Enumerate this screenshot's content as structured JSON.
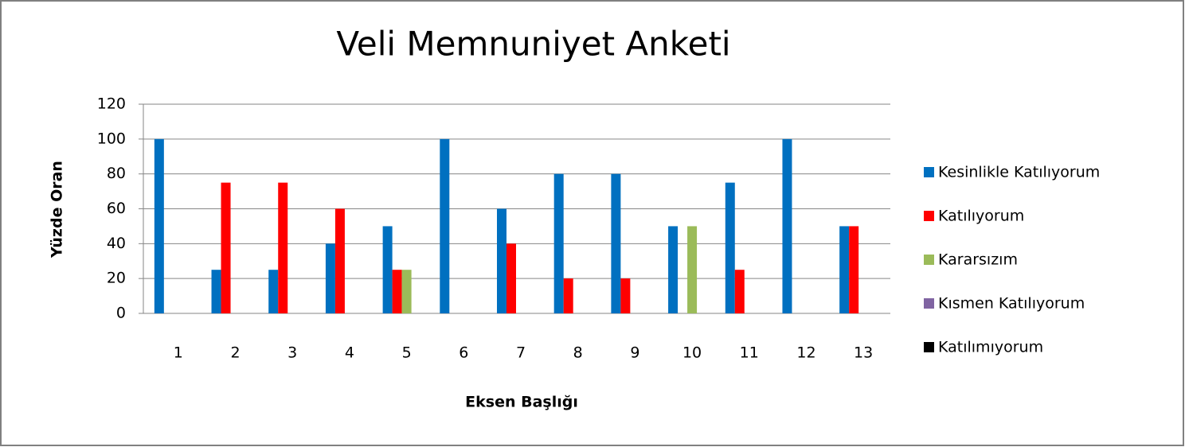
{
  "chart_data": {
    "type": "bar",
    "title": "Veli Memnuniyet Anketi",
    "x_label": "Eksen Başlığı",
    "y_label": "Yüzde Oran",
    "categories": [
      "1",
      "2",
      "3",
      "4",
      "5",
      "6",
      "7",
      "8",
      "9",
      "10",
      "11",
      "12",
      "13"
    ],
    "series": [
      {
        "name": "Kesinlikle Katılıyorum",
        "color": "#0070c0",
        "values": [
          100,
          25,
          25,
          40,
          50,
          100,
          60,
          80,
          80,
          50,
          75,
          100,
          50
        ]
      },
      {
        "name": "Katılıyorum",
        "color": "#ff0000",
        "values": [
          0,
          75,
          75,
          60,
          25,
          0,
          40,
          20,
          20,
          0,
          25,
          0,
          50
        ]
      },
      {
        "name": "Kararsızım",
        "color": "#9bbb59",
        "values": [
          0,
          0,
          0,
          0,
          25,
          0,
          0,
          0,
          0,
          50,
          0,
          0,
          0
        ]
      },
      {
        "name": "Kısmen Katılıyorum",
        "color": "#8064a2",
        "values": [
          0,
          0,
          0,
          0,
          0,
          0,
          0,
          0,
          0,
          0,
          0,
          0,
          0
        ]
      },
      {
        "name": "Katılımıyorum",
        "color": "#000000",
        "values": [
          0,
          0,
          0,
          0,
          0,
          0,
          0,
          0,
          0,
          0,
          0,
          0,
          0
        ]
      }
    ],
    "ylim": [
      0,
      120
    ],
    "yticks": [
      0,
      20,
      40,
      60,
      80,
      100,
      120
    ],
    "grid": true,
    "legend": "right"
  }
}
